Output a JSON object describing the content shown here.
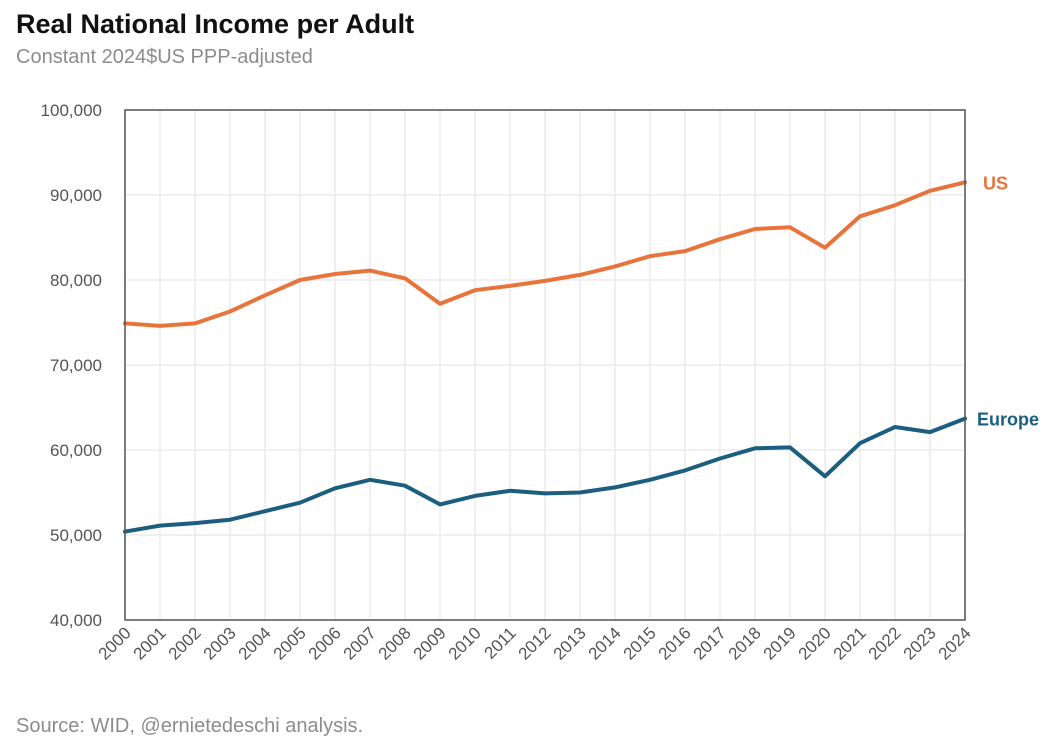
{
  "header": {
    "title": "Real National Income per Adult",
    "subtitle": "Constant 2024$US PPP-adjusted"
  },
  "footer": {
    "source": "Source: WID, @ernietedeschi analysis."
  },
  "colors": {
    "us": "#e8743b",
    "europe": "#1b5e80",
    "grid": "#ececec",
    "axis": "#555555",
    "tick_text": "#555555"
  },
  "chart_data": {
    "type": "line",
    "title": "Real National Income per Adult",
    "subtitle": "Constant 2024$US PPP-adjusted",
    "xlabel": "",
    "ylabel": "",
    "x": [
      "2000",
      "2001",
      "2002",
      "2003",
      "2004",
      "2005",
      "2006",
      "2007",
      "2008",
      "2009",
      "2010",
      "2011",
      "2012",
      "2013",
      "2014",
      "2015",
      "2016",
      "2017",
      "2018",
      "2019",
      "2020",
      "2021",
      "2022",
      "2023",
      "2024"
    ],
    "ylim": [
      40000,
      100000
    ],
    "yticks": [
      40000,
      50000,
      60000,
      70000,
      80000,
      90000,
      100000
    ],
    "ytick_labels": [
      "40,000",
      "50,000",
      "60,000",
      "70,000",
      "80,000",
      "90,000",
      "100,000"
    ],
    "grid": true,
    "legend": "direct labels at right end of lines",
    "series": [
      {
        "name": "US",
        "color": "#e8743b",
        "values": [
          74900,
          74600,
          74900,
          76300,
          78200,
          80000,
          80700,
          81100,
          80200,
          77200,
          78800,
          79300,
          79900,
          80600,
          81600,
          82800,
          83400,
          84800,
          86000,
          86200,
          83800,
          87500,
          88800,
          90500,
          91500
        ]
      },
      {
        "name": "Europe",
        "color": "#1b5e80",
        "values": [
          50400,
          51100,
          51400,
          51800,
          52800,
          53800,
          55500,
          56500,
          55800,
          53600,
          54600,
          55200,
          54900,
          55000,
          55600,
          56500,
          57600,
          59000,
          60200,
          60300,
          56900,
          60800,
          62700,
          62100,
          63700
        ]
      }
    ]
  }
}
